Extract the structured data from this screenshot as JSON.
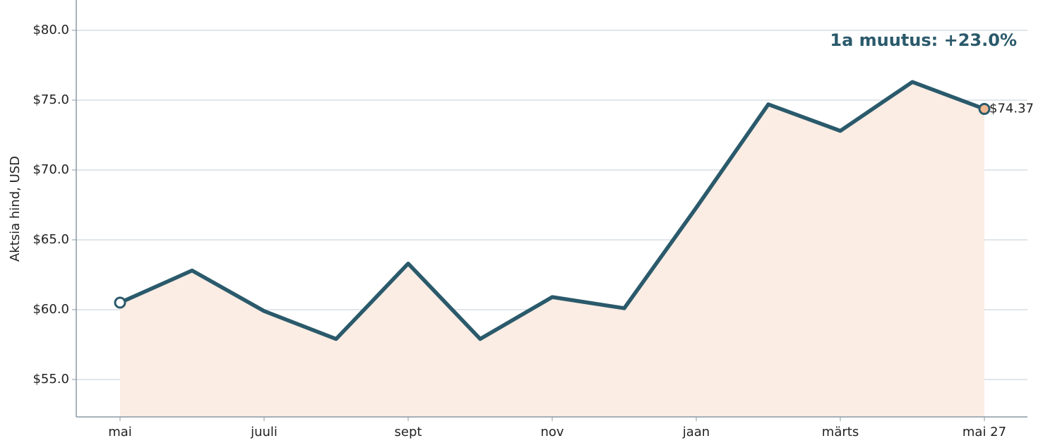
{
  "chart_data": {
    "type": "line",
    "y_label": "Aktsia hind, USD",
    "annotation": "1a muutus: +23.0%",
    "categories": [
      "mai",
      null,
      "juuli",
      null,
      "sept",
      null,
      "nov",
      null,
      "jaan",
      null,
      "märts",
      null,
      "mai 27"
    ],
    "series": [
      {
        "name": "Aktsia hind",
        "color": "#2a5a6b",
        "fill": "#fbece4",
        "values": [
          60.5,
          62.8,
          59.9,
          57.9,
          63.3,
          57.9,
          60.9,
          60.1,
          67.3,
          74.7,
          72.8,
          76.3,
          74.37
        ],
        "value_labels": [
          null,
          null,
          null,
          null,
          null,
          null,
          null,
          null,
          null,
          null,
          null,
          null,
          "$74.37"
        ]
      }
    ],
    "ylim": [
      52.32,
      82.17
    ],
    "yticks": [
      {
        "value": 55,
        "label": "$55.0"
      },
      {
        "value": 60,
        "label": "$60.0"
      },
      {
        "value": 65,
        "label": "$65.0"
      },
      {
        "value": 70,
        "label": "$70.0"
      },
      {
        "value": 75,
        "label": "$75.0"
      },
      {
        "value": 80,
        "label": "$80.0"
      }
    ],
    "grid": true
  }
}
